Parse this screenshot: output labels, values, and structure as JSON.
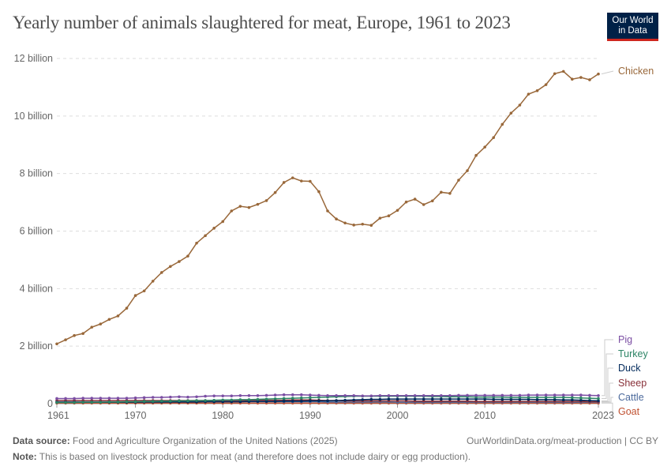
{
  "title": "Yearly number of animals slaughtered for meat, Europe, 1961 to 2023",
  "logo": {
    "line1": "Our World",
    "line2": "in Data",
    "bg": "#002147",
    "accent": "#ce261e"
  },
  "footer": {
    "source_label": "Data source:",
    "source_text": "Food and Agriculture Organization of the United Nations (2025)",
    "link": "OurWorldinData.org/meat-production | CC BY",
    "note_label": "Note:",
    "note_text": "This is based on livestock production for meat (and therefore does not include dairy or egg production)."
  },
  "chart_data": {
    "type": "line",
    "title": "Yearly number of animals slaughtered for meat, Europe, 1961 to 2023",
    "xlim": [
      1961,
      2023
    ],
    "ylim": [
      0,
      12000000000
    ],
    "grid": true,
    "legend_placement": "right",
    "x_ticks": [
      "1961",
      "1970",
      "1980",
      "1990",
      "2000",
      "2010",
      "2023"
    ],
    "y_ticks": [
      {
        "value": 0,
        "label": "0"
      },
      {
        "value": 2000000000,
        "label": "2 billion"
      },
      {
        "value": 4000000000,
        "label": "4 billion"
      },
      {
        "value": 6000000000,
        "label": "6 billion"
      },
      {
        "value": 8000000000,
        "label": "8 billion"
      },
      {
        "value": 10000000000,
        "label": "10 billion"
      },
      {
        "value": 12000000000,
        "label": "12 billion"
      }
    ],
    "x_start": 1961,
    "unit_scale": 1000000000,
    "series": [
      {
        "name": "Chicken",
        "color": "#99683a",
        "values_billion": [
          2.08,
          2.22,
          2.37,
          2.44,
          2.66,
          2.77,
          2.93,
          3.05,
          3.32,
          3.76,
          3.92,
          4.26,
          4.56,
          4.77,
          4.94,
          5.13,
          5.58,
          5.84,
          6.1,
          6.33,
          6.7,
          6.86,
          6.82,
          6.93,
          7.06,
          7.34,
          7.69,
          7.85,
          7.74,
          7.73,
          7.37,
          6.7,
          6.42,
          6.28,
          6.21,
          6.24,
          6.2,
          6.45,
          6.53,
          6.72,
          7.01,
          7.11,
          6.92,
          7.05,
          7.35,
          7.31,
          7.77,
          8.1,
          8.63,
          8.92,
          9.25,
          9.71,
          10.1,
          10.38,
          10.76,
          10.88,
          11.09,
          11.47,
          11.55,
          11.28,
          11.34,
          11.26,
          11.46
        ]
      },
      {
        "name": "Pig",
        "color": "#7b4ea3",
        "values_billion": [
          0.18,
          0.18,
          0.18,
          0.19,
          0.19,
          0.19,
          0.19,
          0.19,
          0.19,
          0.2,
          0.21,
          0.22,
          0.22,
          0.23,
          0.24,
          0.23,
          0.24,
          0.26,
          0.27,
          0.27,
          0.27,
          0.28,
          0.28,
          0.28,
          0.29,
          0.3,
          0.31,
          0.31,
          0.31,
          0.3,
          0.29,
          0.28,
          0.28,
          0.28,
          0.28,
          0.27,
          0.27,
          0.28,
          0.28,
          0.28,
          0.28,
          0.28,
          0.28,
          0.28,
          0.28,
          0.28,
          0.29,
          0.29,
          0.29,
          0.29,
          0.29,
          0.29,
          0.29,
          0.29,
          0.3,
          0.3,
          0.3,
          0.3,
          0.3,
          0.3,
          0.3,
          0.29,
          0.28
        ]
      },
      {
        "name": "Turkey",
        "color": "#2c8465",
        "values_billion": [
          0.04,
          0.04,
          0.04,
          0.05,
          0.05,
          0.05,
          0.06,
          0.06,
          0.07,
          0.07,
          0.08,
          0.08,
          0.09,
          0.09,
          0.1,
          0.1,
          0.11,
          0.11,
          0.12,
          0.13,
          0.13,
          0.14,
          0.14,
          0.15,
          0.16,
          0.17,
          0.18,
          0.19,
          0.2,
          0.21,
          0.22,
          0.23,
          0.24,
          0.25,
          0.26,
          0.26,
          0.26,
          0.26,
          0.26,
          0.26,
          0.26,
          0.26,
          0.26,
          0.25,
          0.25,
          0.24,
          0.24,
          0.24,
          0.23,
          0.23,
          0.23,
          0.23,
          0.22,
          0.22,
          0.22,
          0.22,
          0.22,
          0.22,
          0.22,
          0.21,
          0.2,
          0.19,
          0.18
        ]
      },
      {
        "name": "Duck",
        "color": "#00295b",
        "values_billion": [
          0.05,
          0.05,
          0.05,
          0.05,
          0.05,
          0.05,
          0.05,
          0.05,
          0.05,
          0.05,
          0.06,
          0.06,
          0.06,
          0.06,
          0.06,
          0.06,
          0.06,
          0.07,
          0.07,
          0.07,
          0.07,
          0.07,
          0.08,
          0.08,
          0.08,
          0.08,
          0.09,
          0.09,
          0.09,
          0.1,
          0.1,
          0.1,
          0.11,
          0.12,
          0.13,
          0.14,
          0.15,
          0.15,
          0.16,
          0.16,
          0.16,
          0.16,
          0.16,
          0.16,
          0.16,
          0.16,
          0.16,
          0.16,
          0.16,
          0.16,
          0.15,
          0.15,
          0.15,
          0.15,
          0.15,
          0.14,
          0.14,
          0.14,
          0.13,
          0.13,
          0.12,
          0.11,
          0.1
        ]
      },
      {
        "name": "Sheep",
        "color": "#883039",
        "values_billion": [
          0.11,
          0.11,
          0.11,
          0.11,
          0.11,
          0.11,
          0.11,
          0.11,
          0.11,
          0.11,
          0.11,
          0.11,
          0.11,
          0.11,
          0.11,
          0.11,
          0.11,
          0.11,
          0.11,
          0.11,
          0.11,
          0.11,
          0.12,
          0.12,
          0.12,
          0.12,
          0.12,
          0.13,
          0.13,
          0.13,
          0.12,
          0.11,
          0.11,
          0.1,
          0.1,
          0.1,
          0.1,
          0.1,
          0.1,
          0.1,
          0.1,
          0.09,
          0.09,
          0.09,
          0.09,
          0.09,
          0.09,
          0.09,
          0.08,
          0.08,
          0.08,
          0.08,
          0.08,
          0.08,
          0.08,
          0.08,
          0.08,
          0.08,
          0.08,
          0.08,
          0.08,
          0.07,
          0.07
        ]
      },
      {
        "name": "Cattle",
        "color": "#4c6a9c",
        "values_billion": [
          0.06,
          0.06,
          0.06,
          0.06,
          0.06,
          0.06,
          0.06,
          0.06,
          0.06,
          0.06,
          0.06,
          0.06,
          0.06,
          0.06,
          0.07,
          0.07,
          0.07,
          0.07,
          0.07,
          0.07,
          0.07,
          0.07,
          0.07,
          0.07,
          0.07,
          0.07,
          0.07,
          0.07,
          0.07,
          0.07,
          0.07,
          0.06,
          0.06,
          0.06,
          0.06,
          0.06,
          0.06,
          0.06,
          0.06,
          0.05,
          0.05,
          0.05,
          0.05,
          0.05,
          0.05,
          0.05,
          0.05,
          0.05,
          0.05,
          0.05,
          0.05,
          0.05,
          0.05,
          0.05,
          0.05,
          0.05,
          0.05,
          0.05,
          0.05,
          0.05,
          0.05,
          0.05,
          0.05
        ]
      },
      {
        "name": "Goat",
        "color": "#c05131",
        "values_billion": [
          0.02,
          0.02,
          0.02,
          0.02,
          0.02,
          0.02,
          0.02,
          0.02,
          0.02,
          0.02,
          0.02,
          0.02,
          0.02,
          0.02,
          0.02,
          0.02,
          0.02,
          0.02,
          0.02,
          0.02,
          0.02,
          0.02,
          0.02,
          0.02,
          0.02,
          0.02,
          0.02,
          0.02,
          0.02,
          0.02,
          0.02,
          0.02,
          0.02,
          0.02,
          0.02,
          0.02,
          0.02,
          0.02,
          0.02,
          0.02,
          0.02,
          0.02,
          0.02,
          0.02,
          0.02,
          0.02,
          0.02,
          0.02,
          0.02,
          0.02,
          0.02,
          0.02,
          0.02,
          0.02,
          0.02,
          0.02,
          0.02,
          0.02,
          0.02,
          0.02,
          0.02,
          0.02,
          0.02
        ]
      }
    ]
  }
}
